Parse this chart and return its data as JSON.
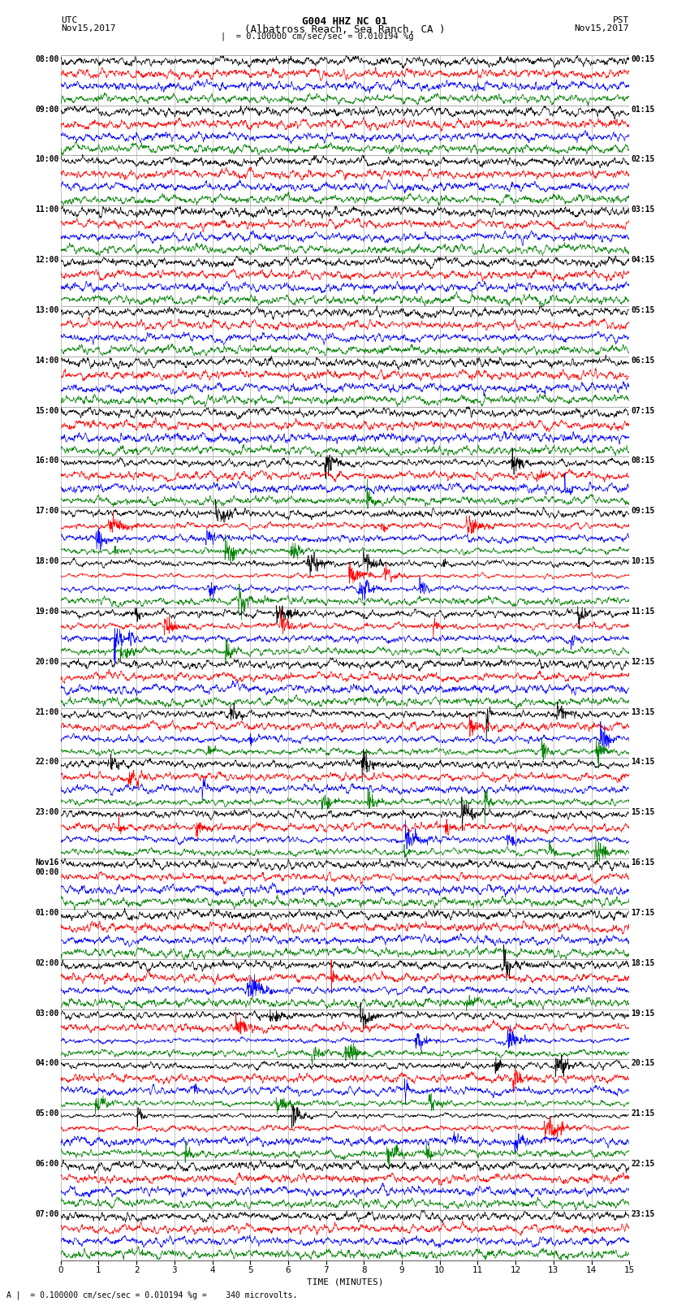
{
  "title_line1": "G004 HHZ NC 01",
  "title_line2": "(Albatross Reach, Sea Ranch, CA )",
  "scale_text": "= 0.100000 cm/sec/sec = 0.010194 %g",
  "footer_text": "= 0.100000 cm/sec/sec = 0.010194 %g =    340 microvolts.",
  "xlabel": "TIME (MINUTES)",
  "left_times": [
    "08:00",
    "09:00",
    "10:00",
    "11:00",
    "12:00",
    "13:00",
    "14:00",
    "15:00",
    "16:00",
    "17:00",
    "18:00",
    "19:00",
    "20:00",
    "21:00",
    "22:00",
    "23:00",
    "Nov16\n00:00",
    "01:00",
    "02:00",
    "03:00",
    "04:00",
    "05:00",
    "06:00",
    "07:00"
  ],
  "right_times": [
    "00:15",
    "01:15",
    "02:15",
    "03:15",
    "04:15",
    "05:15",
    "06:15",
    "07:15",
    "08:15",
    "09:15",
    "10:15",
    "11:15",
    "12:15",
    "13:15",
    "14:15",
    "15:15",
    "16:15",
    "17:15",
    "18:15",
    "19:15",
    "20:15",
    "21:15",
    "22:15",
    "23:15"
  ],
  "n_rows": 24,
  "n_traces_per_row": 4,
  "colors": [
    "black",
    "red",
    "blue",
    "green"
  ],
  "x_min": 0,
  "x_max": 15,
  "background_color": "white",
  "grid_color": "#aaaaaa",
  "fig_width": 8.5,
  "fig_height": 16.13,
  "dpi": 100,
  "seed": 42,
  "event_rows": [
    8,
    9,
    10,
    11,
    13,
    14,
    15,
    18,
    19,
    20,
    21
  ]
}
